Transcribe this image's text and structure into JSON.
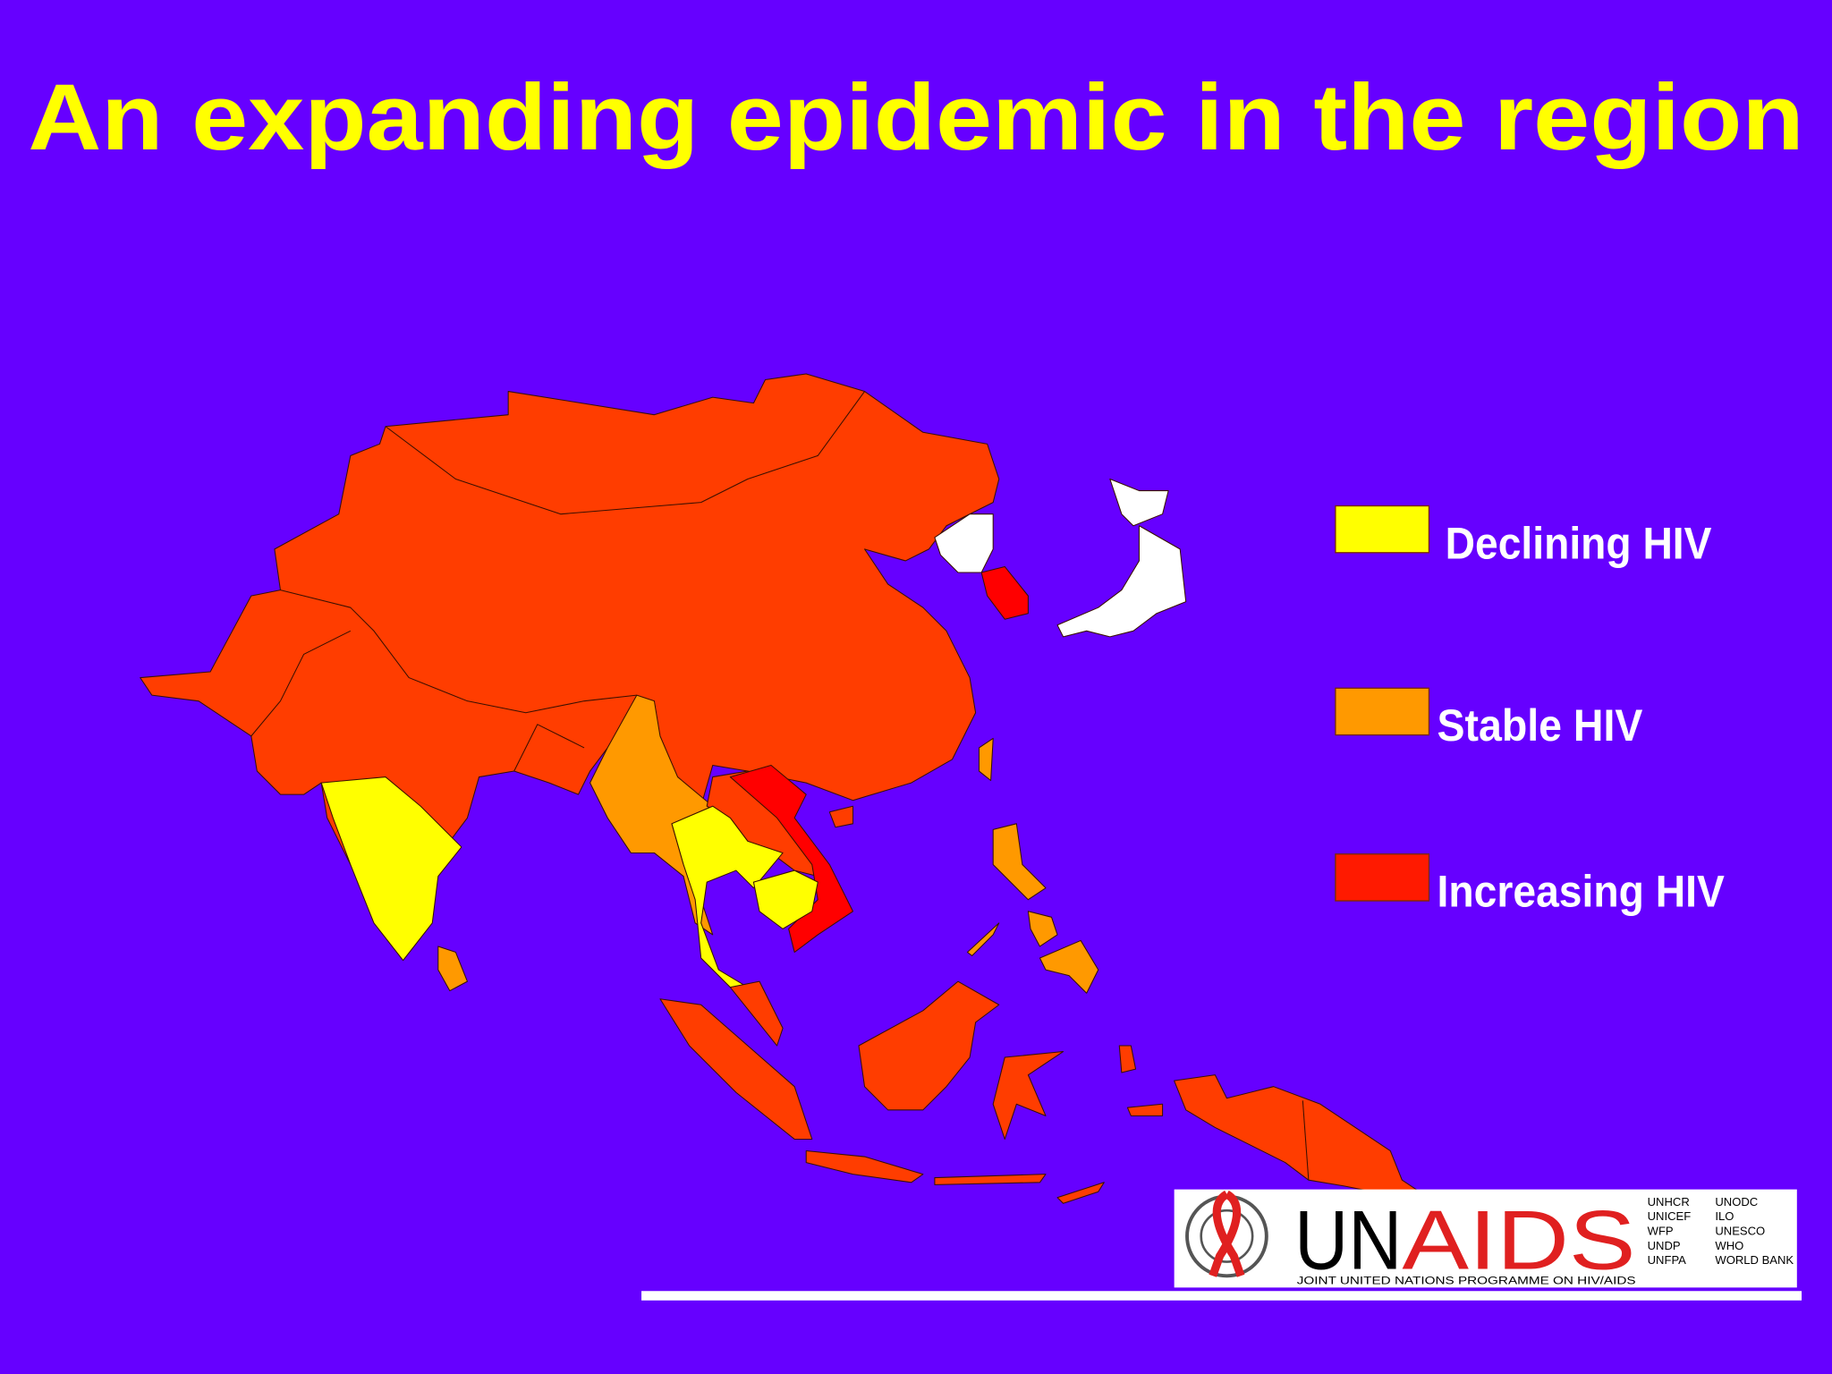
{
  "title": "An expanding epidemic in the region",
  "legend": [
    {
      "label": "Declining HIV",
      "color": "#ffff00"
    },
    {
      "label": "Stable HIV",
      "color": "#ff9900"
    },
    {
      "label": "Increasing HIV",
      "color": "#ff1a00"
    }
  ],
  "logo": {
    "un": "UN",
    "aids": "AIDS",
    "tagline": "JOINT UNITED NATIONS PROGRAMME ON HIV/AIDS",
    "cosponsors": [
      [
        "UNHCR",
        "UNICEF",
        "WFP",
        "UNDP",
        "UNFPA"
      ],
      [
        "UNODC",
        "ILO",
        "UNESCO",
        "WHO",
        "WORLD BANK"
      ]
    ]
  }
}
